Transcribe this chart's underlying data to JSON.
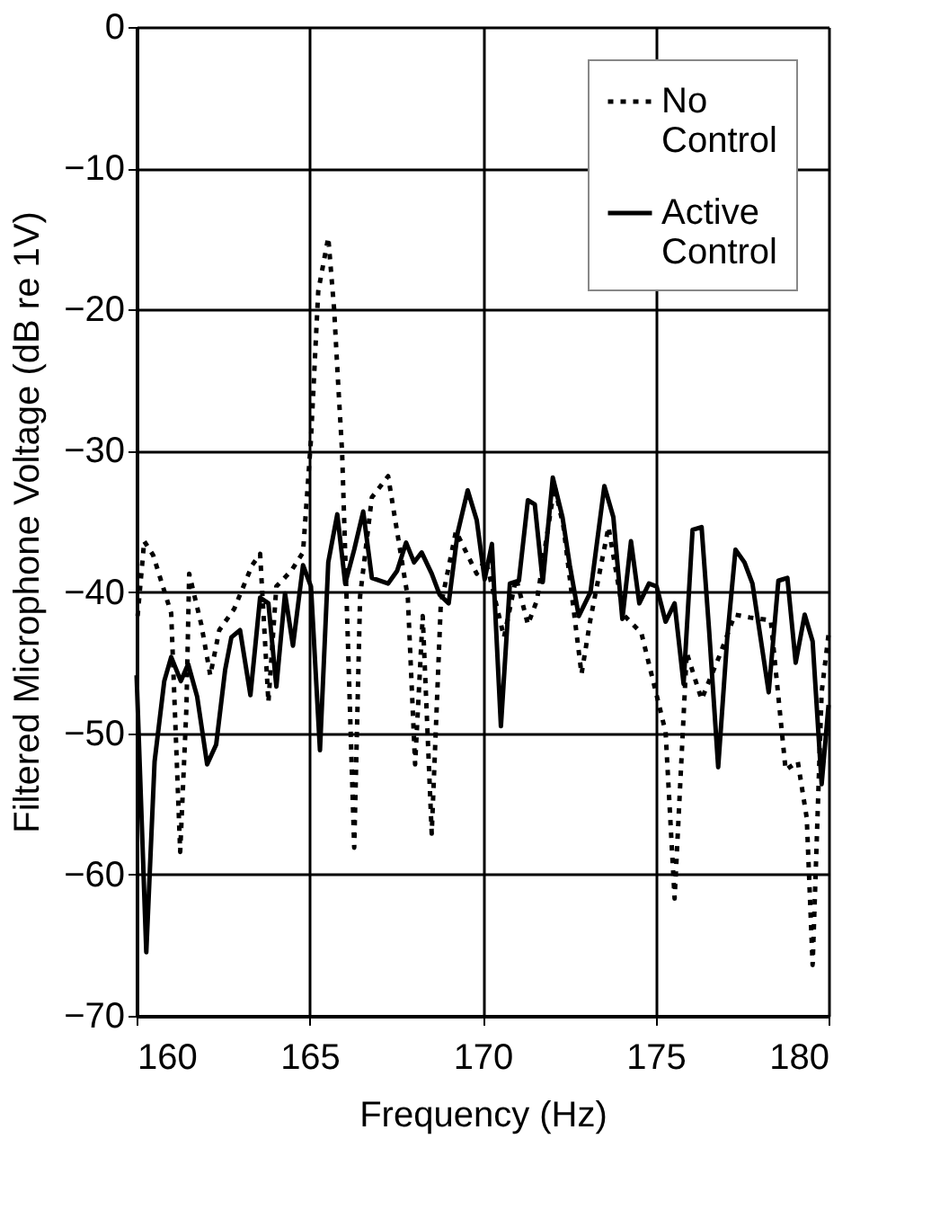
{
  "chart_data": {
    "type": "line",
    "xlabel": "Frequency (Hz)",
    "ylabel": "Filtered Microphone Voltage (dB re 1V)",
    "xlim": [
      160,
      180
    ],
    "xticks": [
      160,
      165,
      170,
      175,
      180
    ],
    "ylim": [
      -70,
      0
    ],
    "yticks": [
      -70,
      -60,
      -50,
      -40,
      -30,
      -20,
      -10,
      0
    ],
    "grid": true,
    "legend": "top right",
    "marker": "none",
    "series": [
      {
        "name": "No Control",
        "color": "#000000",
        "line_style": "dotted",
        "x": [
          160.03,
          160.22,
          160.48,
          161.0,
          161.26,
          161.44,
          161.52,
          161.87,
          162.13,
          162.39,
          162.82,
          163.34,
          163.57,
          163.81,
          164.04,
          164.47,
          164.81,
          165.04,
          165.25,
          165.54,
          165.71,
          165.82,
          165.94,
          166.29,
          166.46,
          166.8,
          167.27,
          167.84,
          168.05,
          168.27,
          168.53,
          168.79,
          169.23,
          169.83,
          170.09,
          170.62,
          170.97,
          171.31,
          171.57,
          172.08,
          172.34,
          172.86,
          173.12,
          173.64,
          174.07,
          174.59,
          174.93,
          175.29,
          175.55,
          175.9,
          176.33,
          176.85,
          177.29,
          177.72,
          178.33,
          178.76,
          179.11,
          179.37,
          179.54,
          179.8,
          180.0
        ],
        "values": [
          -41.7,
          -36.4,
          -37.4,
          -41.5,
          -58.4,
          -48.2,
          -38.7,
          -42.3,
          -45.9,
          -42.7,
          -41.2,
          -38.1,
          -37.3,
          -47.8,
          -39.6,
          -38.5,
          -37.2,
          -29.2,
          -18.7,
          -14.9,
          -20.0,
          -25.0,
          -30.1,
          -58.1,
          -40.3,
          -33.3,
          -31.8,
          -40.4,
          -52.2,
          -41.7,
          -57.1,
          -41.0,
          -35.7,
          -38.7,
          -37.7,
          -43.2,
          -39.0,
          -42.3,
          -40.6,
          -32.5,
          -35.4,
          -45.8,
          -41.9,
          -35.4,
          -41.6,
          -42.9,
          -46.3,
          -49.9,
          -61.7,
          -44.3,
          -47.6,
          -44.5,
          -41.6,
          -41.8,
          -42.0,
          -52.6,
          -52.0,
          -56.0,
          -66.4,
          -47.1,
          -43.0
        ]
      },
      {
        "name": "Active Control",
        "color": "#000000",
        "line_style": "solid",
        "x": [
          160.0,
          160.28,
          160.52,
          160.8,
          161.0,
          161.28,
          161.49,
          161.75,
          162.04,
          162.3,
          162.56,
          162.74,
          162.99,
          163.29,
          163.57,
          163.81,
          164.04,
          164.29,
          164.52,
          164.81,
          165.04,
          165.3,
          165.54,
          165.8,
          166.03,
          166.29,
          166.55,
          166.8,
          167.27,
          167.53,
          167.79,
          168.02,
          168.24,
          168.53,
          168.76,
          169.02,
          169.28,
          169.57,
          169.83,
          170.06,
          170.27,
          170.53,
          170.79,
          171.05,
          171.31,
          171.51,
          171.74,
          172.03,
          172.31,
          172.52,
          172.78,
          173.12,
          173.52,
          173.78,
          174.04,
          174.29,
          174.53,
          174.81,
          175.03,
          175.29,
          175.55,
          175.81,
          176.07,
          176.33,
          176.55,
          176.81,
          177.07,
          177.31,
          177.57,
          177.8,
          178.27,
          178.55,
          178.81,
          179.05,
          179.31,
          179.54,
          179.8,
          180.0
        ],
        "values": [
          -45.9,
          -65.5,
          -52.0,
          -46.3,
          -44.6,
          -46.3,
          -45.1,
          -47.4,
          -52.2,
          -50.8,
          -45.5,
          -43.2,
          -42.7,
          -47.3,
          -40.4,
          -40.8,
          -46.7,
          -40.1,
          -43.8,
          -38.1,
          -39.6,
          -51.2,
          -37.9,
          -34.5,
          -39.4,
          -37.0,
          -34.3,
          -39.0,
          -39.4,
          -38.5,
          -36.5,
          -37.9,
          -37.2,
          -38.7,
          -40.2,
          -40.8,
          -35.8,
          -32.8,
          -34.9,
          -39.1,
          -36.6,
          -49.5,
          -39.4,
          -39.2,
          -33.5,
          -33.8,
          -39.3,
          -31.9,
          -34.7,
          -38.1,
          -41.7,
          -40.0,
          -32.5,
          -34.7,
          -41.9,
          -36.4,
          -40.8,
          -39.4,
          -39.6,
          -42.1,
          -40.8,
          -46.5,
          -35.6,
          -35.4,
          -42.8,
          -52.4,
          -43.3,
          -37.0,
          -37.9,
          -39.4,
          -47.1,
          -39.2,
          -39.0,
          -45.0,
          -41.6,
          -43.5,
          -53.6,
          -48.0
        ]
      }
    ]
  }
}
